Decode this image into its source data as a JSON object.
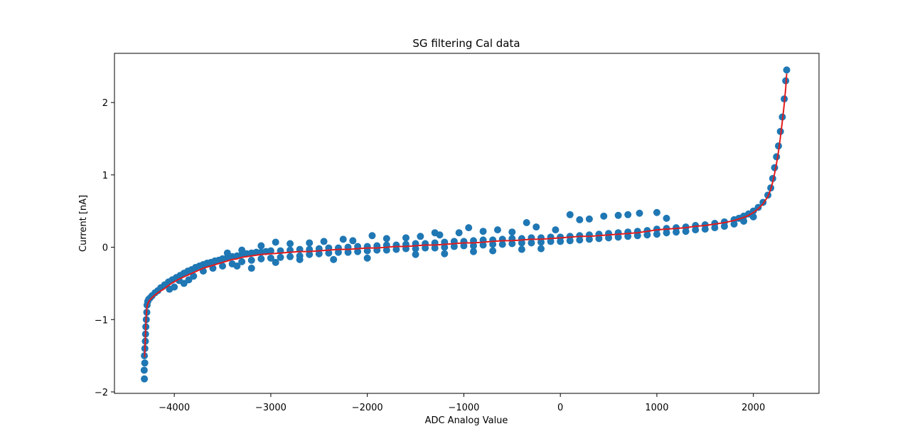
{
  "chart_data": {
    "type": "scatter",
    "title": "SG filtering Cal data",
    "xlabel": "ADC Analog Value",
    "ylabel": "Current [nA]",
    "xlim": [
      -4620,
      2680
    ],
    "ylim": [
      -2.02,
      2.68
    ],
    "x_ticks": [
      -4000,
      -3000,
      -2000,
      -1000,
      0,
      1000,
      2000
    ],
    "x_tick_labels": [
      "−4000",
      "−3000",
      "−2000",
      "−1000",
      "0",
      "1000",
      "2000"
    ],
    "y_ticks": [
      -2,
      -1,
      0,
      1,
      2
    ],
    "y_tick_labels": [
      "−2",
      "−1",
      "0",
      "1",
      "2"
    ],
    "grid": false,
    "legend": "none",
    "series": [
      {
        "kind": "scatter",
        "color": "#1f77b4",
        "points": [
          [
            -4310,
            -1.82
          ],
          [
            -4312,
            -1.7
          ],
          [
            -4306,
            -1.6
          ],
          [
            -4310,
            -1.5
          ],
          [
            -4305,
            -1.4
          ],
          [
            -4300,
            -1.3
          ],
          [
            -4298,
            -1.2
          ],
          [
            -4295,
            -1.1
          ],
          [
            -4290,
            -1.0
          ],
          [
            -4285,
            -0.9
          ],
          [
            -4282,
            -0.8
          ],
          [
            -4275,
            -0.75
          ],
          [
            -4265,
            -0.72
          ],
          [
            -4250,
            -0.7
          ],
          [
            -4230,
            -0.67
          ],
          [
            -4200,
            -0.63
          ],
          [
            -4170,
            -0.6
          ],
          [
            -4140,
            -0.56
          ],
          [
            -4100,
            -0.52
          ],
          [
            -4060,
            -0.48
          ],
          [
            -4020,
            -0.45
          ],
          [
            -3980,
            -0.42
          ],
          [
            -3940,
            -0.39
          ],
          [
            -3900,
            -0.36
          ],
          [
            -3860,
            -0.33
          ],
          [
            -3820,
            -0.31
          ],
          [
            -3780,
            -0.28
          ],
          [
            -3740,
            -0.26
          ],
          [
            -3700,
            -0.24
          ],
          [
            -3660,
            -0.22
          ],
          [
            -3620,
            -0.21
          ],
          [
            -3580,
            -0.19
          ],
          [
            -3540,
            -0.18
          ],
          [
            -3500,
            -0.16
          ],
          [
            -3450,
            -0.14
          ],
          [
            -3400,
            -0.13
          ],
          [
            -3350,
            -0.12
          ],
          [
            -3300,
            -0.1
          ],
          [
            -3250,
            -0.09
          ],
          [
            -3200,
            -0.08
          ],
          [
            -3150,
            -0.07
          ],
          [
            -3100,
            -0.07
          ],
          [
            -3050,
            -0.06
          ],
          [
            -3000,
            -0.05
          ],
          [
            -2900,
            -0.05
          ],
          [
            -2800,
            -0.04
          ],
          [
            -2700,
            -0.03
          ],
          [
            -2600,
            -0.03
          ],
          [
            -2500,
            -0.02
          ],
          [
            -2400,
            -0.01
          ],
          [
            -2300,
            -0.01
          ],
          [
            -2200,
            0.0
          ],
          [
            -2100,
            0.01
          ],
          [
            -2000,
            0.01
          ],
          [
            -1900,
            0.02
          ],
          [
            -1800,
            0.03
          ],
          [
            -1700,
            0.03
          ],
          [
            -1600,
            0.04
          ],
          [
            -1500,
            0.05
          ],
          [
            -1400,
            0.05
          ],
          [
            -1300,
            0.06
          ],
          [
            -1200,
            0.07
          ],
          [
            -1100,
            0.08
          ],
          [
            -1000,
            0.08
          ],
          [
            -900,
            0.09
          ],
          [
            -800,
            0.1
          ],
          [
            -700,
            0.1
          ],
          [
            -600,
            0.11
          ],
          [
            -500,
            0.12
          ],
          [
            -400,
            0.12
          ],
          [
            -300,
            0.13
          ],
          [
            -200,
            0.13
          ],
          [
            -100,
            0.14
          ],
          [
            0,
            0.14
          ],
          [
            100,
            0.15
          ],
          [
            200,
            0.16
          ],
          [
            300,
            0.17
          ],
          [
            400,
            0.18
          ],
          [
            500,
            0.19
          ],
          [
            600,
            0.2
          ],
          [
            700,
            0.21
          ],
          [
            800,
            0.22
          ],
          [
            900,
            0.23
          ],
          [
            1000,
            0.25
          ],
          [
            1100,
            0.26
          ],
          [
            1200,
            0.27
          ],
          [
            1300,
            0.28
          ],
          [
            1400,
            0.3
          ],
          [
            1500,
            0.31
          ],
          [
            1600,
            0.33
          ],
          [
            1700,
            0.35
          ],
          [
            1800,
            0.38
          ],
          [
            1850,
            0.4
          ],
          [
            1900,
            0.43
          ],
          [
            1950,
            0.46
          ],
          [
            2000,
            0.5
          ],
          [
            2050,
            0.55
          ],
          [
            2100,
            0.62
          ],
          [
            2150,
            0.72
          ],
          [
            2180,
            0.82
          ],
          [
            2200,
            0.95
          ],
          [
            2220,
            1.1
          ],
          [
            2240,
            1.25
          ],
          [
            2260,
            1.4
          ],
          [
            2280,
            1.6
          ],
          [
            2300,
            1.8
          ],
          [
            2320,
            2.05
          ],
          [
            2335,
            2.3
          ],
          [
            2345,
            2.45
          ],
          [
            -3900,
            -0.5
          ],
          [
            -3950,
            -0.46
          ],
          [
            -4000,
            -0.55
          ],
          [
            -4050,
            -0.58
          ],
          [
            -3850,
            -0.45
          ],
          [
            -3800,
            -0.4
          ],
          [
            -3700,
            -0.33
          ],
          [
            -3600,
            -0.29
          ],
          [
            -3500,
            -0.26
          ],
          [
            -3400,
            -0.23
          ],
          [
            -3300,
            -0.2
          ],
          [
            -3200,
            -0.18
          ],
          [
            -3100,
            -0.16
          ],
          [
            -3000,
            -0.15
          ],
          [
            -2900,
            -0.14
          ],
          [
            -2800,
            -0.13
          ],
          [
            -2700,
            -0.12
          ],
          [
            -2600,
            -0.1
          ],
          [
            -2500,
            -0.09
          ],
          [
            -2400,
            -0.08
          ],
          [
            -2300,
            -0.07
          ],
          [
            -2200,
            -0.07
          ],
          [
            -2100,
            -0.06
          ],
          [
            -2000,
            -0.05
          ],
          [
            -1900,
            -0.04
          ],
          [
            -1800,
            -0.04
          ],
          [
            -1700,
            -0.03
          ],
          [
            -1600,
            -0.02
          ],
          [
            -1500,
            -0.02
          ],
          [
            -1400,
            -0.01
          ],
          [
            -1300,
            -0.01
          ],
          [
            -1200,
            0.0
          ],
          [
            -1100,
            0.01
          ],
          [
            -1000,
            0.02
          ],
          [
            -900,
            0.02
          ],
          [
            -800,
            0.03
          ],
          [
            -700,
            0.04
          ],
          [
            -600,
            0.04
          ],
          [
            -500,
            0.05
          ],
          [
            -400,
            0.06
          ],
          [
            -300,
            0.06
          ],
          [
            -200,
            0.07
          ],
          [
            -100,
            0.08
          ],
          [
            0,
            0.08
          ],
          [
            100,
            0.09
          ],
          [
            200,
            0.1
          ],
          [
            300,
            0.11
          ],
          [
            400,
            0.12
          ],
          [
            500,
            0.13
          ],
          [
            600,
            0.14
          ],
          [
            700,
            0.15
          ],
          [
            800,
            0.16
          ],
          [
            900,
            0.17
          ],
          [
            1000,
            0.18
          ],
          [
            1100,
            0.2
          ],
          [
            1200,
            0.21
          ],
          [
            1300,
            0.22
          ],
          [
            1400,
            0.24
          ],
          [
            1500,
            0.25
          ],
          [
            1600,
            0.27
          ],
          [
            1700,
            0.29
          ],
          [
            1800,
            0.32
          ],
          [
            1900,
            0.36
          ],
          [
            2000,
            0.42
          ],
          [
            -3450,
            -0.08
          ],
          [
            -3300,
            -0.04
          ],
          [
            -3100,
            0.02
          ],
          [
            -2950,
            0.07
          ],
          [
            -2800,
            0.05
          ],
          [
            -2600,
            0.06
          ],
          [
            -2450,
            0.08
          ],
          [
            -2250,
            0.11
          ],
          [
            -2150,
            0.09
          ],
          [
            -1950,
            0.16
          ],
          [
            -1800,
            0.12
          ],
          [
            -1600,
            0.13
          ],
          [
            -1450,
            0.15
          ],
          [
            -1300,
            0.2
          ],
          [
            -1250,
            0.17
          ],
          [
            -1050,
            0.2
          ],
          [
            -950,
            0.27
          ],
          [
            -800,
            0.22
          ],
          [
            -650,
            0.24
          ],
          [
            -500,
            0.21
          ],
          [
            -350,
            0.34
          ],
          [
            -250,
            0.28
          ],
          [
            -50,
            0.24
          ],
          [
            100,
            0.45
          ],
          [
            200,
            0.38
          ],
          [
            300,
            0.39
          ],
          [
            450,
            0.43
          ],
          [
            600,
            0.44
          ],
          [
            700,
            0.45
          ],
          [
            820,
            0.47
          ],
          [
            1000,
            0.48
          ],
          [
            1100,
            0.4
          ],
          [
            -2350,
            -0.17
          ],
          [
            -2000,
            -0.15
          ],
          [
            -1500,
            -0.1
          ],
          [
            -1200,
            -0.09
          ],
          [
            -900,
            -0.06
          ],
          [
            -700,
            -0.05
          ],
          [
            -400,
            -0.03
          ],
          [
            -200,
            -0.02
          ],
          [
            -3350,
            -0.26
          ],
          [
            -3200,
            -0.29
          ],
          [
            -2950,
            -0.21
          ],
          [
            -2700,
            -0.17
          ]
        ]
      },
      {
        "kind": "line",
        "color": "#e41a1c",
        "points": [
          [
            -4308,
            -1.52
          ],
          [
            -4300,
            -1.25
          ],
          [
            -4292,
            -0.98
          ],
          [
            -4285,
            -0.84
          ],
          [
            -4275,
            -0.78
          ],
          [
            -4255,
            -0.73
          ],
          [
            -4225,
            -0.69
          ],
          [
            -4190,
            -0.65
          ],
          [
            -4150,
            -0.61
          ],
          [
            -4110,
            -0.58
          ],
          [
            -4070,
            -0.54
          ],
          [
            -4030,
            -0.5
          ],
          [
            -3990,
            -0.47
          ],
          [
            -3950,
            -0.44
          ],
          [
            -3900,
            -0.41
          ],
          [
            -3850,
            -0.38
          ],
          [
            -3800,
            -0.35
          ],
          [
            -3750,
            -0.32
          ],
          [
            -3700,
            -0.29
          ],
          [
            -3650,
            -0.27
          ],
          [
            -3600,
            -0.25
          ],
          [
            -3550,
            -0.23
          ],
          [
            -3500,
            -0.21
          ],
          [
            -3450,
            -0.19
          ],
          [
            -3400,
            -0.17
          ],
          [
            -3350,
            -0.16
          ],
          [
            -3300,
            -0.14
          ],
          [
            -3250,
            -0.13
          ],
          [
            -3200,
            -0.12
          ],
          [
            -3150,
            -0.11
          ],
          [
            -3100,
            -0.1
          ],
          [
            -3000,
            -0.09
          ],
          [
            -2900,
            -0.08
          ],
          [
            -2800,
            -0.07
          ],
          [
            -2700,
            -0.06
          ],
          [
            -2600,
            -0.06
          ],
          [
            -2500,
            -0.05
          ],
          [
            -2400,
            -0.04
          ],
          [
            -2300,
            -0.03
          ],
          [
            -2200,
            -0.03
          ],
          [
            -2100,
            -0.02
          ],
          [
            -2000,
            -0.01
          ],
          [
            -1900,
            -0.01
          ],
          [
            -1800,
            0.0
          ],
          [
            -1700,
            0.01
          ],
          [
            -1600,
            0.01
          ],
          [
            -1500,
            0.02
          ],
          [
            -1400,
            0.03
          ],
          [
            -1300,
            0.03
          ],
          [
            -1200,
            0.04
          ],
          [
            -1100,
            0.05
          ],
          [
            -1000,
            0.06
          ],
          [
            -900,
            0.06
          ],
          [
            -800,
            0.07
          ],
          [
            -700,
            0.08
          ],
          [
            -600,
            0.09
          ],
          [
            -500,
            0.09
          ],
          [
            -400,
            0.1
          ],
          [
            -300,
            0.11
          ],
          [
            -200,
            0.11
          ],
          [
            -100,
            0.12
          ],
          [
            0,
            0.13
          ],
          [
            100,
            0.14
          ],
          [
            200,
            0.15
          ],
          [
            300,
            0.15
          ],
          [
            400,
            0.16
          ],
          [
            500,
            0.17
          ],
          [
            600,
            0.18
          ],
          [
            700,
            0.19
          ],
          [
            800,
            0.2
          ],
          [
            900,
            0.22
          ],
          [
            1000,
            0.24
          ],
          [
            1100,
            0.25
          ],
          [
            1200,
            0.26
          ],
          [
            1300,
            0.27
          ],
          [
            1400,
            0.29
          ],
          [
            1500,
            0.3
          ],
          [
            1600,
            0.32
          ],
          [
            1700,
            0.34
          ],
          [
            1800,
            0.37
          ],
          [
            1900,
            0.41
          ],
          [
            1950,
            0.44
          ],
          [
            2000,
            0.48
          ],
          [
            2050,
            0.53
          ],
          [
            2100,
            0.6
          ],
          [
            2150,
            0.7
          ],
          [
            2180,
            0.8
          ],
          [
            2200,
            0.9
          ],
          [
            2220,
            1.02
          ],
          [
            2240,
            1.16
          ],
          [
            2260,
            1.32
          ],
          [
            2280,
            1.52
          ],
          [
            2300,
            1.74
          ],
          [
            2320,
            1.98
          ],
          [
            2335,
            2.2
          ],
          [
            2345,
            2.4
          ]
        ]
      }
    ]
  }
}
